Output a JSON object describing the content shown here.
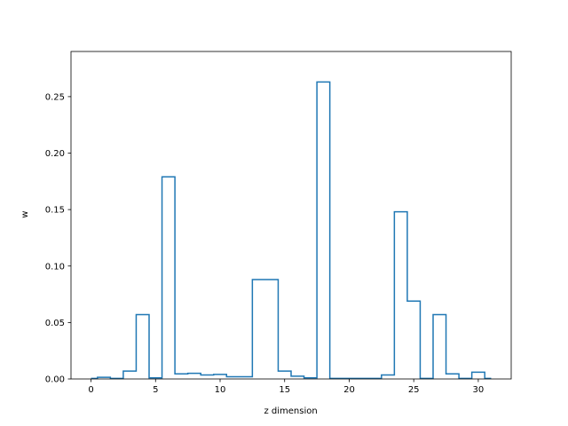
{
  "chart_data": {
    "type": "line",
    "step": "mid",
    "title": "",
    "xlabel": "z dimension",
    "ylabel": "w",
    "xlim": [
      -1.55,
      32.55
    ],
    "ylim": [
      0,
      0.29
    ],
    "xticks": [
      0,
      5,
      10,
      15,
      20,
      25,
      30
    ],
    "yticks": [
      0.0,
      0.05,
      0.1,
      0.15,
      0.2,
      0.25
    ],
    "ytick_labels": [
      "0.00",
      "0.05",
      "0.10",
      "0.15",
      "0.20",
      "0.25"
    ],
    "grid": false,
    "color": "#1f77b4",
    "series": [
      {
        "x": [
          0,
          1,
          2,
          3,
          4,
          5,
          6,
          7,
          8,
          9,
          10,
          11,
          12,
          13,
          14,
          15,
          16,
          17,
          18,
          19,
          20,
          21,
          22,
          23,
          24,
          25,
          26,
          27,
          28,
          29,
          30,
          31
        ],
        "values": [
          0.0005,
          0.0015,
          0.0005,
          0.007,
          0.057,
          0.001,
          0.179,
          0.0045,
          0.005,
          0.0035,
          0.004,
          0.002,
          0.002,
          0.088,
          0.088,
          0.007,
          0.0025,
          0.001,
          0.263,
          0.0005,
          0.0005,
          0.0005,
          0.0005,
          0.0035,
          0.148,
          0.069,
          0.0005,
          0.057,
          0.0045,
          0.0005,
          0.006,
          0.0005
        ]
      }
    ]
  }
}
